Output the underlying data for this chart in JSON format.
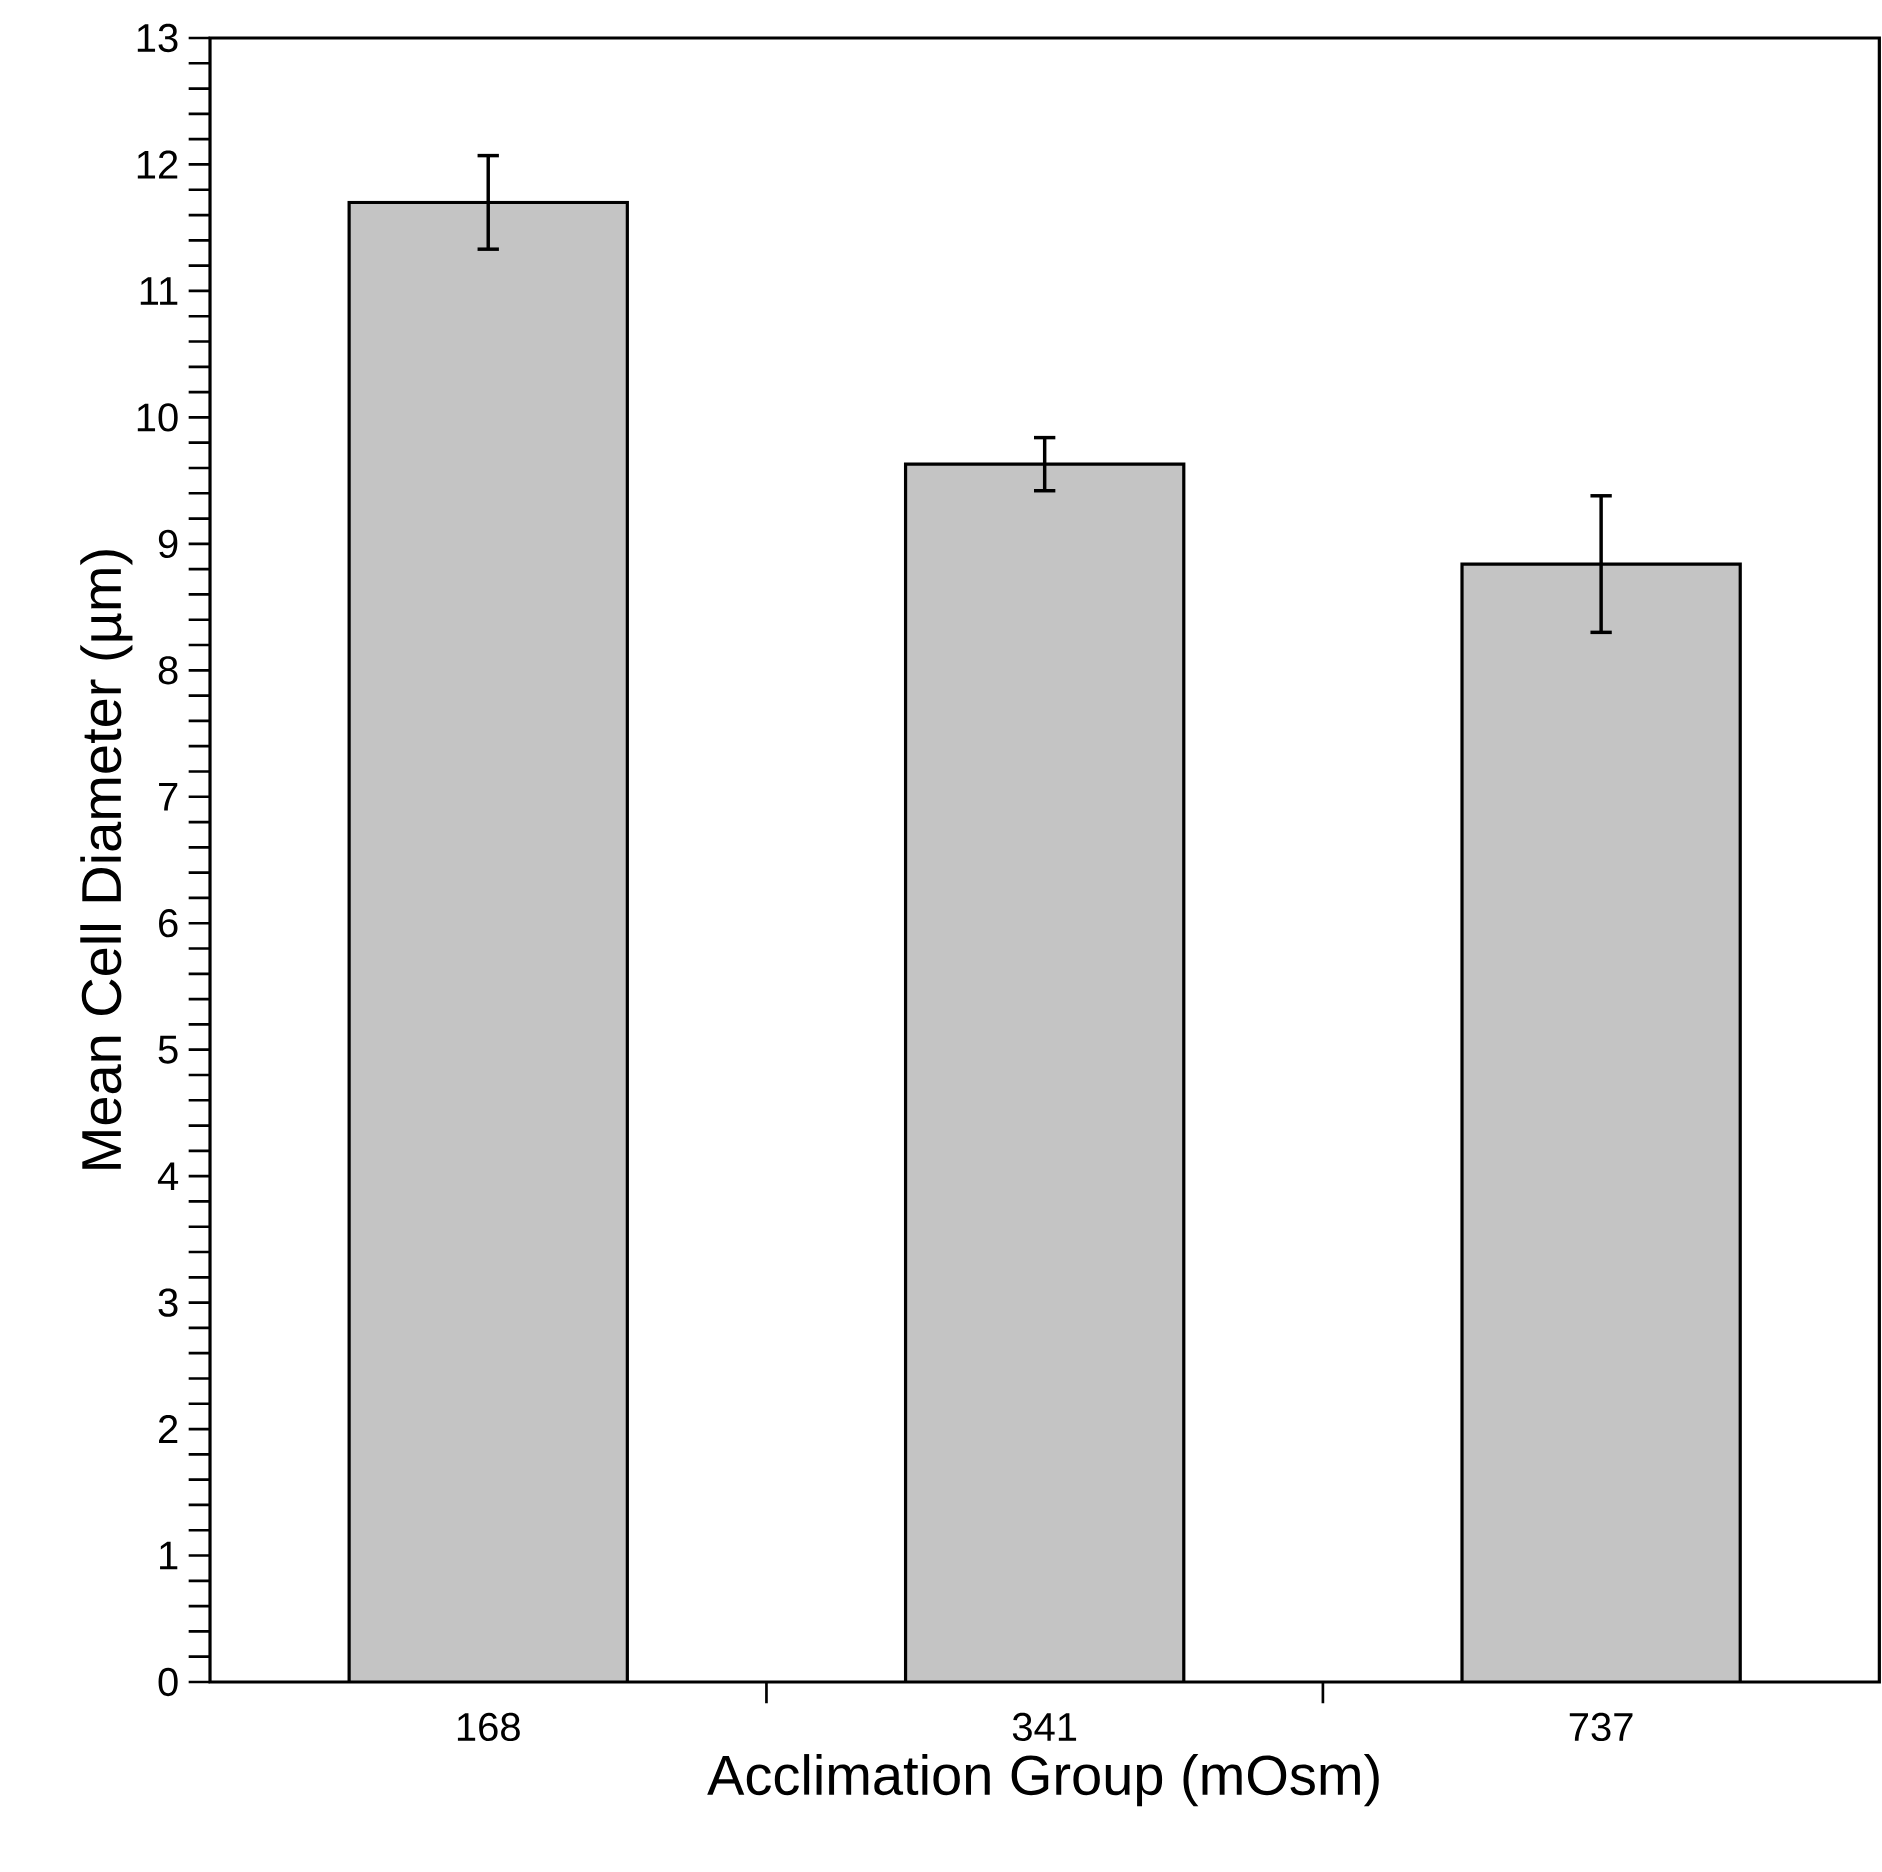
{
  "chart_data": {
    "type": "bar",
    "xlabel": "Acclimation Group (mOsm)",
    "ylabel": "Mean Cell Diameter (µm)",
    "categories": [
      "168",
      "341",
      "737"
    ],
    "values": [
      11.7,
      9.63,
      8.84
    ],
    "errors": [
      0.37,
      0.21,
      0.54
    ],
    "color": "#c4c4c4",
    "ylim": [
      0,
      13
    ],
    "yticks": [
      0,
      1,
      2,
      3,
      4,
      5,
      6,
      7,
      8,
      9,
      10,
      11,
      12,
      13
    ]
  }
}
